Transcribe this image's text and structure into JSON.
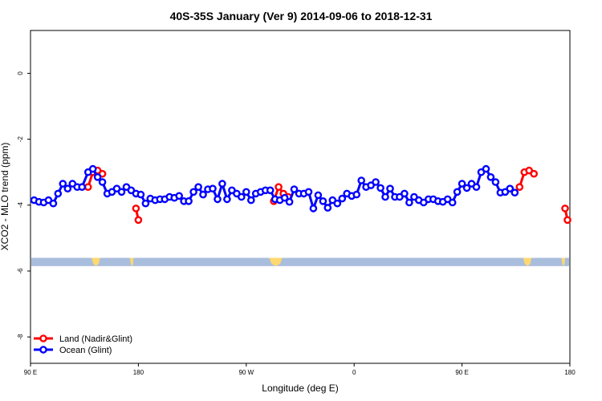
{
  "chart_data": {
    "type": "line",
    "title": "40S-35S January (Ver 9)   2014-09-06 to 2018-12-31",
    "xlabel": "Longitude (deg E)",
    "ylabel": "XCO2 - MLO trend (ppm)",
    "xlim": [
      90,
      540
    ],
    "ylim": [
      -8.8,
      1.3
    ],
    "x_ticks": [
      {
        "value": 90,
        "label": "90 E"
      },
      {
        "value": 180,
        "label": "180"
      },
      {
        "value": 270,
        "label": "90 W"
      },
      {
        "value": 360,
        "label": "0"
      },
      {
        "value": 450,
        "label": "90 E"
      },
      {
        "value": 540,
        "label": "180"
      }
    ],
    "y_ticks": [
      {
        "value": 0,
        "label": "0"
      },
      {
        "value": -2,
        "label": "-2"
      },
      {
        "value": -4,
        "label": "-4"
      },
      {
        "value": -6,
        "label": "-6"
      },
      {
        "value": -8,
        "label": "-8"
      }
    ],
    "series": [
      {
        "name": "Land (Nadir&Glint)",
        "color": "#ff0000",
        "segments": [
          [
            [
              138,
              -3.45
            ],
            [
              142,
              -3.0
            ],
            [
              146,
              -2.95
            ],
            [
              150,
              -3.05
            ]
          ],
          [
            [
              178,
              -4.1
            ],
            [
              180,
              -4.45
            ]
          ],
          [
            [
              293,
              -3.88
            ],
            [
              297,
              -3.45
            ],
            [
              301,
              -3.65
            ],
            [
              305,
              -3.75
            ]
          ],
          [
            [
              498,
              -3.45
            ],
            [
              502,
              -3.0
            ],
            [
              506,
              -2.95
            ],
            [
              510,
              -3.05
            ]
          ],
          [
            [
              536,
              -4.1
            ],
            [
              538,
              -4.45
            ]
          ]
        ]
      },
      {
        "name": "Ocean (Glint)",
        "color": "#0000ff",
        "segments": [
          [
            [
              93,
              -3.85
            ],
            [
              97,
              -3.9
            ],
            [
              101,
              -3.92
            ],
            [
              105,
              -3.85
            ],
            [
              109,
              -3.95
            ],
            [
              113,
              -3.65
            ],
            [
              117,
              -3.35
            ],
            [
              121,
              -3.5
            ],
            [
              125,
              -3.35
            ],
            [
              129,
              -3.45
            ],
            [
              133,
              -3.45
            ],
            [
              138,
              -3.0
            ],
            [
              142,
              -2.9
            ],
            [
              146,
              -3.15
            ],
            [
              150,
              -3.3
            ],
            [
              154,
              -3.65
            ],
            [
              158,
              -3.6
            ],
            [
              162,
              -3.5
            ],
            [
              166,
              -3.6
            ],
            [
              170,
              -3.45
            ],
            [
              174,
              -3.55
            ],
            [
              178,
              -3.65
            ],
            [
              182,
              -3.68
            ],
            [
              186,
              -3.95
            ],
            [
              190,
              -3.8
            ],
            [
              194,
              -3.85
            ],
            [
              198,
              -3.82
            ],
            [
              202,
              -3.82
            ],
            [
              206,
              -3.75
            ],
            [
              210,
              -3.78
            ],
            [
              214,
              -3.72
            ],
            [
              218,
              -3.88
            ],
            [
              222,
              -3.88
            ],
            [
              226,
              -3.6
            ],
            [
              230,
              -3.45
            ],
            [
              234,
              -3.68
            ],
            [
              238,
              -3.52
            ],
            [
              242,
              -3.5
            ],
            [
              246,
              -3.82
            ],
            [
              250,
              -3.35
            ],
            [
              254,
              -3.82
            ],
            [
              258,
              -3.55
            ],
            [
              262,
              -3.65
            ],
            [
              266,
              -3.75
            ],
            [
              270,
              -3.6
            ],
            [
              274,
              -3.85
            ],
            [
              278,
              -3.65
            ],
            [
              282,
              -3.6
            ],
            [
              286,
              -3.55
            ],
            [
              290,
              -3.55
            ],
            [
              294,
              -3.82
            ],
            [
              298,
              -3.85
            ],
            [
              302,
              -3.78
            ],
            [
              306,
              -3.9
            ],
            [
              310,
              -3.52
            ],
            [
              314,
              -3.65
            ],
            [
              318,
              -3.65
            ],
            [
              322,
              -3.6
            ],
            [
              326,
              -4.1
            ],
            [
              330,
              -3.7
            ],
            [
              334,
              -3.88
            ],
            [
              338,
              -4.08
            ],
            [
              342,
              -3.85
            ],
            [
              346,
              -3.95
            ],
            [
              350,
              -3.8
            ],
            [
              354,
              -3.65
            ],
            [
              358,
              -3.72
            ],
            [
              362,
              -3.68
            ],
            [
              366,
              -3.25
            ],
            [
              370,
              -3.45
            ],
            [
              374,
              -3.4
            ],
            [
              378,
              -3.3
            ],
            [
              382,
              -3.48
            ],
            [
              386,
              -3.75
            ],
            [
              390,
              -3.5
            ],
            [
              394,
              -3.75
            ],
            [
              398,
              -3.75
            ],
            [
              402,
              -3.65
            ],
            [
              406,
              -3.92
            ],
            [
              410,
              -3.75
            ],
            [
              414,
              -3.85
            ],
            [
              418,
              -3.92
            ],
            [
              422,
              -3.82
            ],
            [
              426,
              -3.82
            ],
            [
              430,
              -3.88
            ],
            [
              434,
              -3.9
            ],
            [
              438,
              -3.82
            ],
            [
              442,
              -3.92
            ],
            [
              446,
              -3.6
            ],
            [
              450,
              -3.35
            ],
            [
              454,
              -3.48
            ],
            [
              458,
              -3.35
            ],
            [
              462,
              -3.45
            ],
            [
              466,
              -3.0
            ],
            [
              470,
              -2.9
            ],
            [
              474,
              -3.15
            ],
            [
              478,
              -3.3
            ],
            [
              482,
              -3.62
            ],
            [
              486,
              -3.6
            ],
            [
              490,
              -3.5
            ],
            [
              494,
              -3.62
            ]
          ]
        ]
      }
    ],
    "legend_position": "bottom-left",
    "background_band": {
      "y_range": [
        -5.6,
        -5.85
      ],
      "color": "#a9bddd",
      "land_color": "#ffd870",
      "land_patches": [
        {
          "x_range": [
            141,
            148
          ]
        },
        {
          "x_range": [
            173,
            176
          ]
        },
        {
          "x_range": [
            289,
            300
          ]
        },
        {
          "x_range": [
            501,
            508
          ]
        },
        {
          "x_range": [
            533,
            536
          ]
        }
      ]
    }
  }
}
